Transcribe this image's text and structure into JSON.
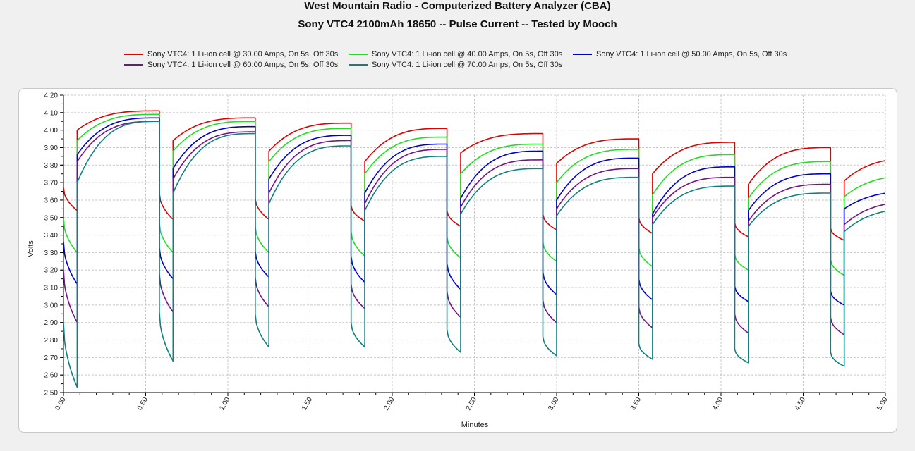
{
  "chart_data": {
    "type": "line",
    "title": "West Mountain Radio - Computerized Battery Analyzer (CBA)",
    "subtitle": "Sony VTC4 2100mAh 18650 -- Pulse Current -- Tested by Mooch",
    "xlabel": "Minutes",
    "ylabel": "Volts",
    "xlim": [
      0,
      5
    ],
    "ylim": [
      2.5,
      4.2
    ],
    "x_ticks": [
      "0.00",
      "0.50",
      "1.00",
      "1.50",
      "2.00",
      "2.50",
      "3.00",
      "3.50",
      "4.00",
      "4.50",
      "5.00"
    ],
    "y_ticks": [
      "2.50",
      "2.60",
      "2.70",
      "2.80",
      "2.90",
      "3.00",
      "3.10",
      "3.20",
      "3.30",
      "3.40",
      "3.50",
      "3.60",
      "3.70",
      "3.80",
      "3.90",
      "4.00",
      "4.10",
      "4.20"
    ],
    "grid": true,
    "legend_position": "top",
    "pulse_period_min": 0.5833,
    "pulse_on_min": 0.0833,
    "series": [
      {
        "name": "Sony VTC4: 1 Li-ion cell @ 30.00 Amps, On 5s, Off 30s",
        "color": "#e00000",
        "on_start": [
          3.67,
          3.64,
          3.61,
          3.57,
          3.54,
          3.52,
          3.5,
          3.47,
          3.44
        ],
        "on_end": [
          3.54,
          3.49,
          3.49,
          3.48,
          3.45,
          3.43,
          3.41,
          3.39,
          3.37
        ],
        "rest_start": [
          4.0,
          3.94,
          3.88,
          3.82,
          3.87,
          3.81,
          3.75,
          3.69,
          3.71
        ],
        "rest_end": [
          4.11,
          4.07,
          4.04,
          4.01,
          3.98,
          3.95,
          3.93,
          3.9,
          3.84
        ]
      },
      {
        "name": "Sony VTC4: 1 Li-ion cell @ 40.00 Amps, On 5s, Off 30s",
        "color": "#22dd22",
        "on_start": [
          3.49,
          3.47,
          3.45,
          3.42,
          3.39,
          3.36,
          3.33,
          3.29,
          3.26
        ],
        "on_end": [
          3.3,
          3.3,
          3.3,
          3.28,
          3.27,
          3.25,
          3.22,
          3.2,
          3.17
        ],
        "rest_start": [
          3.94,
          3.88,
          3.82,
          3.75,
          3.75,
          3.7,
          3.63,
          3.61,
          3.62
        ],
        "rest_end": [
          4.09,
          4.05,
          4.01,
          3.96,
          3.92,
          3.89,
          3.86,
          3.82,
          3.74
        ]
      },
      {
        "name": "Sony VTC4: 1 Li-ion cell @ 50.00 Amps, On 5s, Off 30s",
        "color": "#0000cc",
        "on_start": [
          3.36,
          3.33,
          3.31,
          3.28,
          3.24,
          3.19,
          3.15,
          3.11,
          3.08
        ],
        "on_end": [
          3.12,
          3.15,
          3.16,
          3.13,
          3.09,
          3.06,
          3.03,
          3.02,
          3.0
        ],
        "rest_start": [
          3.86,
          3.78,
          3.72,
          3.64,
          3.61,
          3.6,
          3.52,
          3.54,
          3.55
        ],
        "rest_end": [
          4.07,
          4.02,
          3.97,
          3.92,
          3.88,
          3.84,
          3.79,
          3.75,
          3.65
        ]
      },
      {
        "name": "Sony VTC4: 1 Li-ion cell @ 60.00 Amps, On 5s, Off 30s",
        "color": "#771188",
        "on_start": [
          3.2,
          3.18,
          3.16,
          3.12,
          3.08,
          3.03,
          2.99,
          2.95,
          2.93
        ],
        "on_end": [
          2.9,
          2.96,
          2.99,
          2.98,
          2.93,
          2.9,
          2.87,
          2.84,
          2.83
        ],
        "rest_start": [
          3.82,
          3.72,
          3.64,
          3.58,
          3.56,
          3.55,
          3.5,
          3.48,
          3.46
        ],
        "rest_end": [
          4.05,
          3.99,
          3.94,
          3.89,
          3.83,
          3.78,
          3.73,
          3.69,
          3.59
        ]
      },
      {
        "name": "Sony VTC4: 1 Li-ion cell @ 70.00 Amps, On 5s, Off 30s",
        "color": "#118080",
        "on_start": [
          2.9,
          2.96,
          2.95,
          2.9,
          2.86,
          2.82,
          2.78,
          2.75,
          2.73
        ],
        "on_end": [
          2.53,
          2.68,
          2.76,
          2.76,
          2.73,
          2.71,
          2.69,
          2.67,
          2.65
        ],
        "rest_start": [
          3.7,
          3.64,
          3.58,
          3.54,
          3.52,
          3.51,
          3.46,
          3.45,
          3.42
        ],
        "rest_end": [
          4.05,
          3.98,
          3.91,
          3.85,
          3.78,
          3.73,
          3.68,
          3.64,
          3.55
        ]
      }
    ]
  }
}
